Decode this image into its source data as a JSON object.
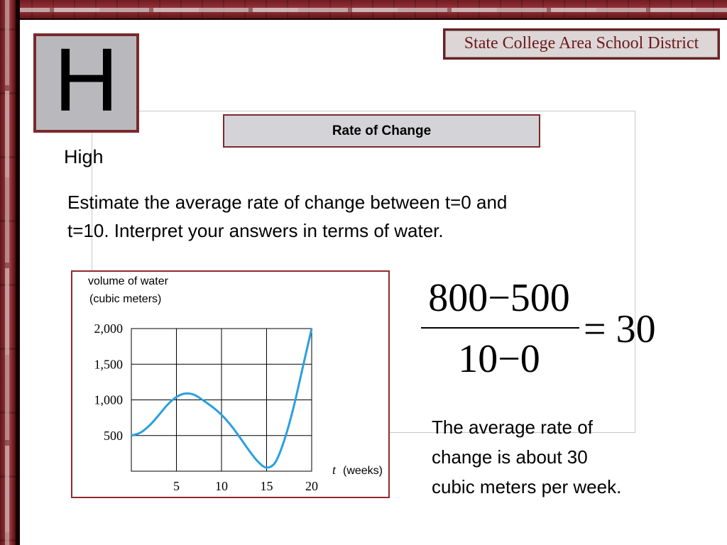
{
  "badge": {
    "letter": "H",
    "level": "High"
  },
  "district": {
    "name": "State College Area School District"
  },
  "slide": {
    "title": "Rate of Change"
  },
  "prompt": {
    "line1": "Estimate the average rate of change between t=0 and",
    "line2": "t=10.  Interpret your answers in terms of water."
  },
  "equation": {
    "numerator": "800−500",
    "denominator": "10−0",
    "result": "= 30"
  },
  "answer": {
    "line1": "The average rate of",
    "line2": "change is about 30",
    "line3": "cubic meters per week."
  },
  "colors": {
    "curve": "#2b9fe0",
    "accent": "#7b2a2d",
    "grid": "#000000"
  },
  "chart_data": {
    "type": "line",
    "ylabel_line1": "volume of water",
    "ylabel_line2": "(cubic meters)",
    "xlabel_symbol": "t",
    "xlabel_unit": "(weeks)",
    "xlim": [
      0,
      20
    ],
    "ylim": [
      0,
      2000
    ],
    "grid": true,
    "x_ticks": [
      5,
      10,
      15,
      20
    ],
    "x_tick_labels": [
      "5",
      "10",
      "15",
      "20"
    ],
    "y_ticks": [
      500,
      1000,
      1500,
      2000
    ],
    "y_tick_labels": [
      "500",
      "1,000",
      "1,500",
      "2,000"
    ],
    "series": [
      {
        "x": [
          0,
          1,
          2,
          3,
          4,
          5,
          6,
          7,
          8,
          9,
          10,
          11,
          12,
          13,
          14,
          15,
          16,
          17,
          18,
          19,
          20
        ],
        "y": [
          500,
          540,
          640,
          780,
          930,
          1040,
          1090,
          1070,
          990,
          900,
          790,
          650,
          480,
          300,
          140,
          50,
          130,
          450,
          900,
          1450,
          2000
        ]
      }
    ]
  }
}
